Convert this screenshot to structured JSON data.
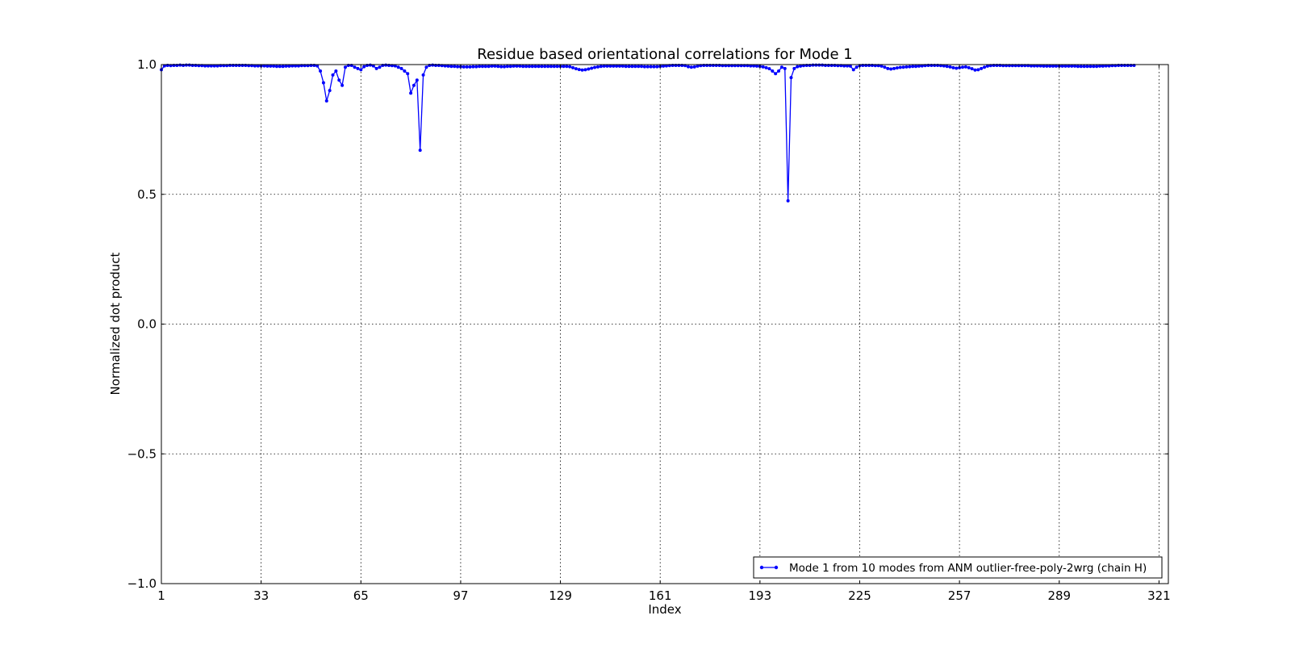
{
  "chart_data": {
    "type": "line",
    "title": "Residue based orientational correlations for Mode 1",
    "xlabel": "Index",
    "ylabel": "Normalized dot product",
    "xlim": [
      1,
      324
    ],
    "ylim": [
      -1.0,
      1.0
    ],
    "xticks": [
      1,
      33,
      65,
      97,
      129,
      161,
      193,
      225,
      257,
      289,
      321
    ],
    "yticks": [
      -1.0,
      -0.5,
      0.0,
      0.5,
      1.0
    ],
    "ytick_labels": [
      "−1.0",
      "−0.5",
      "0.0",
      "0.5",
      "1.0"
    ],
    "grid": true,
    "legend_position": "lower-right",
    "series_color": "#0000ff",
    "series": [
      {
        "name": "Mode 1 from 10 modes from ANM outlier-free-poly-2wrg (chain H)",
        "x_start": 1,
        "x_step": 1,
        "values": [
          0.98,
          0.995,
          0.997,
          0.996,
          0.997,
          0.997,
          0.998,
          0.997,
          0.998,
          0.998,
          0.997,
          0.997,
          0.996,
          0.996,
          0.995,
          0.995,
          0.995,
          0.995,
          0.995,
          0.996,
          0.996,
          0.996,
          0.997,
          0.997,
          0.997,
          0.997,
          0.997,
          0.997,
          0.996,
          0.996,
          0.995,
          0.995,
          0.995,
          0.995,
          0.994,
          0.994,
          0.994,
          0.993,
          0.993,
          0.993,
          0.994,
          0.994,
          0.995,
          0.995,
          0.995,
          0.996,
          0.996,
          0.996,
          0.997,
          0.997,
          0.995,
          0.975,
          0.93,
          0.86,
          0.9,
          0.96,
          0.975,
          0.94,
          0.92,
          0.99,
          0.997,
          0.997,
          0.99,
          0.985,
          0.98,
          0.992,
          0.997,
          0.998,
          0.995,
          0.985,
          0.99,
          0.997,
          0.998,
          0.997,
          0.996,
          0.995,
          0.99,
          0.985,
          0.975,
          0.965,
          0.89,
          0.92,
          0.94,
          0.67,
          0.96,
          0.99,
          0.997,
          0.998,
          0.997,
          0.997,
          0.996,
          0.995,
          0.994,
          0.993,
          0.993,
          0.992,
          0.992,
          0.991,
          0.991,
          0.991,
          0.992,
          0.992,
          0.993,
          0.993,
          0.993,
          0.993,
          0.994,
          0.994,
          0.993,
          0.992,
          0.992,
          0.993,
          0.993,
          0.994,
          0.994,
          0.994,
          0.993,
          0.993,
          0.993,
          0.993,
          0.993,
          0.993,
          0.993,
          0.993,
          0.993,
          0.993,
          0.993,
          0.993,
          0.993,
          0.993,
          0.993,
          0.992,
          0.988,
          0.984,
          0.981,
          0.979,
          0.98,
          0.983,
          0.986,
          0.989,
          0.991,
          0.993,
          0.994,
          0.994,
          0.994,
          0.994,
          0.994,
          0.994,
          0.994,
          0.993,
          0.993,
          0.993,
          0.993,
          0.993,
          0.993,
          0.992,
          0.992,
          0.992,
          0.992,
          0.992,
          0.993,
          0.994,
          0.995,
          0.996,
          0.997,
          0.997,
          0.997,
          0.997,
          0.996,
          0.992,
          0.99,
          0.991,
          0.994,
          0.996,
          0.997,
          0.997,
          0.997,
          0.997,
          0.997,
          0.997,
          0.996,
          0.996,
          0.996,
          0.996,
          0.996,
          0.996,
          0.996,
          0.996,
          0.996,
          0.995,
          0.995,
          0.994,
          0.993,
          0.991,
          0.988,
          0.984,
          0.975,
          0.965,
          0.975,
          0.99,
          0.985,
          0.475,
          0.95,
          0.985,
          0.992,
          0.994,
          0.996,
          0.997,
          0.997,
          0.998,
          0.998,
          0.998,
          0.998,
          0.997,
          0.997,
          0.997,
          0.997,
          0.996,
          0.996,
          0.995,
          0.995,
          0.994,
          0.98,
          0.99,
          0.996,
          0.997,
          0.997,
          0.997,
          0.997,
          0.996,
          0.996,
          0.994,
          0.99,
          0.985,
          0.983,
          0.985,
          0.987,
          0.989,
          0.99,
          0.991,
          0.992,
          0.993,
          0.993,
          0.994,
          0.995,
          0.996,
          0.997,
          0.997,
          0.997,
          0.997,
          0.996,
          0.995,
          0.993,
          0.991,
          0.988,
          0.986,
          0.988,
          0.99,
          0.991,
          0.988,
          0.984,
          0.979,
          0.98,
          0.985,
          0.99,
          0.994,
          0.996,
          0.997,
          0.997,
          0.997,
          0.996,
          0.996,
          0.996,
          0.996,
          0.996,
          0.996,
          0.996,
          0.996,
          0.996,
          0.995,
          0.995,
          0.995,
          0.995,
          0.994,
          0.994,
          0.994,
          0.994,
          0.994,
          0.994,
          0.994,
          0.994,
          0.994,
          0.994,
          0.994,
          0.993,
          0.993,
          0.993,
          0.993,
          0.993,
          0.993,
          0.993,
          0.994,
          0.994,
          0.995,
          0.995,
          0.996,
          0.996,
          0.997,
          0.997,
          0.997,
          0.997,
          0.997,
          0.997
        ]
      }
    ]
  }
}
